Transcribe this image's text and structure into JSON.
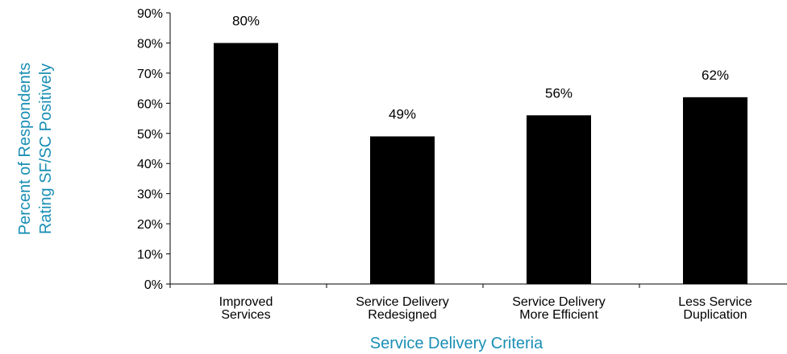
{
  "chart_data": {
    "type": "bar",
    "categories": [
      [
        "Improved",
        "Services"
      ],
      [
        "Service Delivery",
        "Redesigned"
      ],
      [
        "Service Delivery",
        "More Efficient"
      ],
      [
        "Less Service",
        "Duplication"
      ]
    ],
    "values": [
      80,
      49,
      56,
      62
    ],
    "data_labels": [
      "80%",
      "49%",
      "56%",
      "62%"
    ],
    "xlabel": "Service Delivery Criteria",
    "ylabel": [
      "Percent of Respondents",
      "Rating SF/SC Positively"
    ],
    "ylim": [
      0,
      90
    ],
    "yticks": [
      0,
      10,
      20,
      30,
      40,
      50,
      60,
      70,
      80,
      90
    ],
    "ytick_labels": [
      "0%",
      "10%",
      "20%",
      "30%",
      "40%",
      "50%",
      "60%",
      "70%",
      "80%",
      "90%"
    ],
    "grid": false,
    "legend": "none",
    "colors": {
      "bar": "#000000",
      "axis": "#000000",
      "axis_title": "#1a8fb5"
    }
  }
}
